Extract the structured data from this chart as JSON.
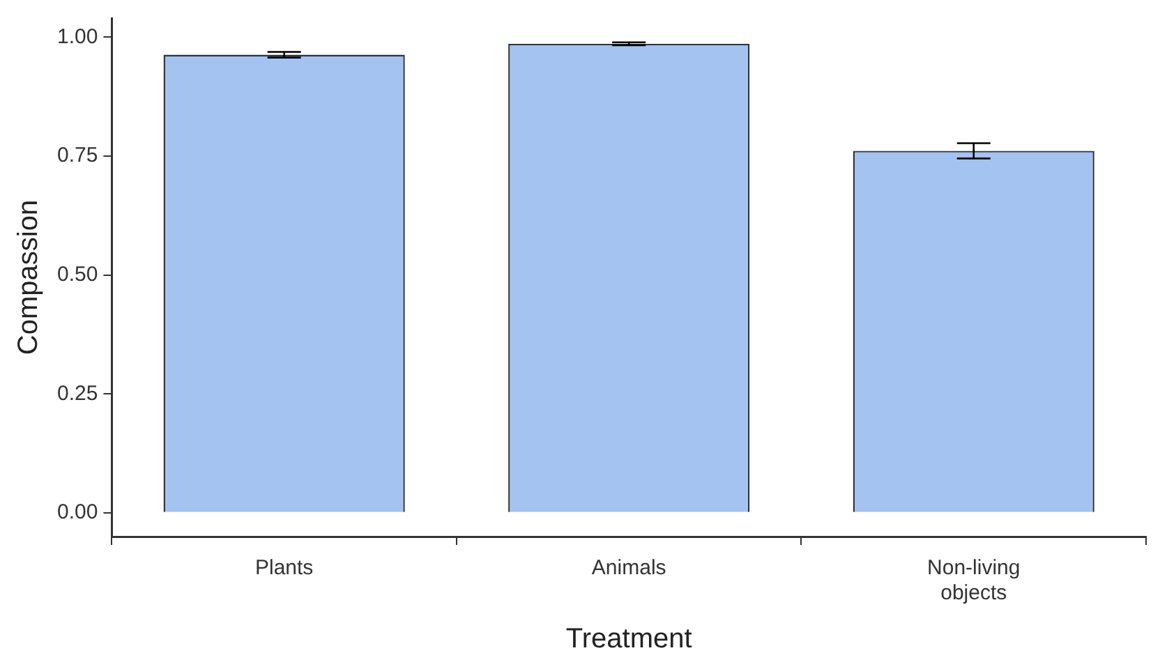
{
  "chart_data": {
    "type": "bar",
    "xlabel": "Treatment",
    "ylabel": "Compassion",
    "categories": [
      "Plants",
      "Animals",
      "Non-living\nobjects"
    ],
    "values": [
      0.963,
      0.986,
      0.761
    ],
    "errors": [
      0.006,
      0.003,
      0.016
    ],
    "color": "#a4c3f1",
    "ylim": [
      -0.05,
      1.04
    ],
    "yticks": [
      {
        "value": 0,
        "label": "0.00"
      },
      {
        "value": 0.25,
        "label": "0.25"
      },
      {
        "value": 0.5,
        "label": "0.50"
      },
      {
        "value": 0.75,
        "label": "0.75"
      },
      {
        "value": 1,
        "label": "1.00"
      }
    ],
    "grid": false,
    "legend": false
  }
}
